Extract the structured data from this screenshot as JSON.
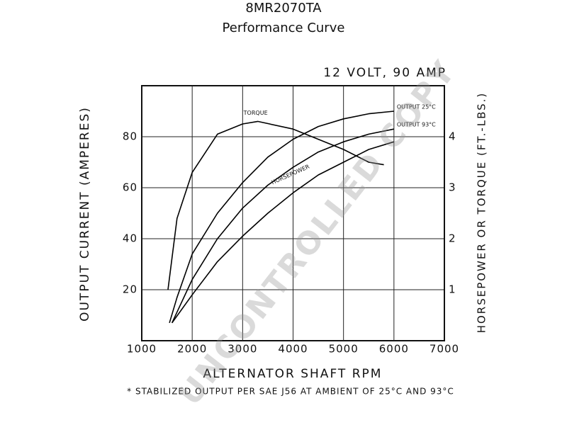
{
  "chart_data": {
    "type": "line",
    "title": "8MR2070TA",
    "subtitle": "Performance Curve",
    "annotation": "12 VOLT, 90 AMP",
    "x_label": "ALTERNATOR SHAFT RPM",
    "y_label": "OUTPUT CURRENT (AMPERES)",
    "y2_label": "HORSEPOWER OR TORQUE (FT.-LBS.)",
    "footnote": "* STABILIZED OUTPUT PER SAE J56 AT AMBIENT OF 25°C AND 93°C",
    "watermark": "UNCONTROLLED COPY",
    "xlim": [
      1000,
      7000
    ],
    "xticks": [
      1000,
      2000,
      3000,
      4000,
      5000,
      6000,
      7000
    ],
    "ylim": [
      0,
      100
    ],
    "yticks": [
      20,
      40,
      60,
      80
    ],
    "y2lim": [
      0,
      5
    ],
    "y2ticks": [
      1,
      2,
      3,
      4
    ],
    "grid": true,
    "series": [
      {
        "name": "OUTPUT 25°C",
        "color": "#000000",
        "x": [
          1550,
          1700,
          2000,
          2500,
          3000,
          3500,
          4000,
          4500,
          5000,
          5500,
          6000
        ],
        "values": [
          7,
          17,
          34,
          50,
          62,
          72,
          79,
          84,
          87,
          89,
          90
        ]
      },
      {
        "name": "OUTPUT 93°C",
        "color": "#000000",
        "x": [
          1600,
          2000,
          2500,
          3000,
          3500,
          4000,
          4500,
          5000,
          5500,
          6000
        ],
        "values": [
          7,
          24,
          40,
          52,
          61,
          68,
          74,
          78,
          81,
          83
        ]
      },
      {
        "name": "HORSEPOWER",
        "color": "#000000",
        "axis": "y2",
        "x": [
          1600,
          2000,
          2500,
          3000,
          3500,
          4000,
          4500,
          5000,
          5500,
          6000
        ],
        "values": [
          0.35,
          0.9,
          1.55,
          2.05,
          2.5,
          2.9,
          3.25,
          3.5,
          3.75,
          3.9
        ]
      },
      {
        "name": "TORQUE",
        "color": "#000000",
        "axis": "y2",
        "x": [
          1520,
          1700,
          2000,
          2500,
          3000,
          3300,
          4000,
          4500,
          5000,
          5500,
          5800
        ],
        "values": [
          1.0,
          2.4,
          3.3,
          4.05,
          4.25,
          4.3,
          4.15,
          3.95,
          3.75,
          3.5,
          3.45
        ]
      }
    ]
  }
}
